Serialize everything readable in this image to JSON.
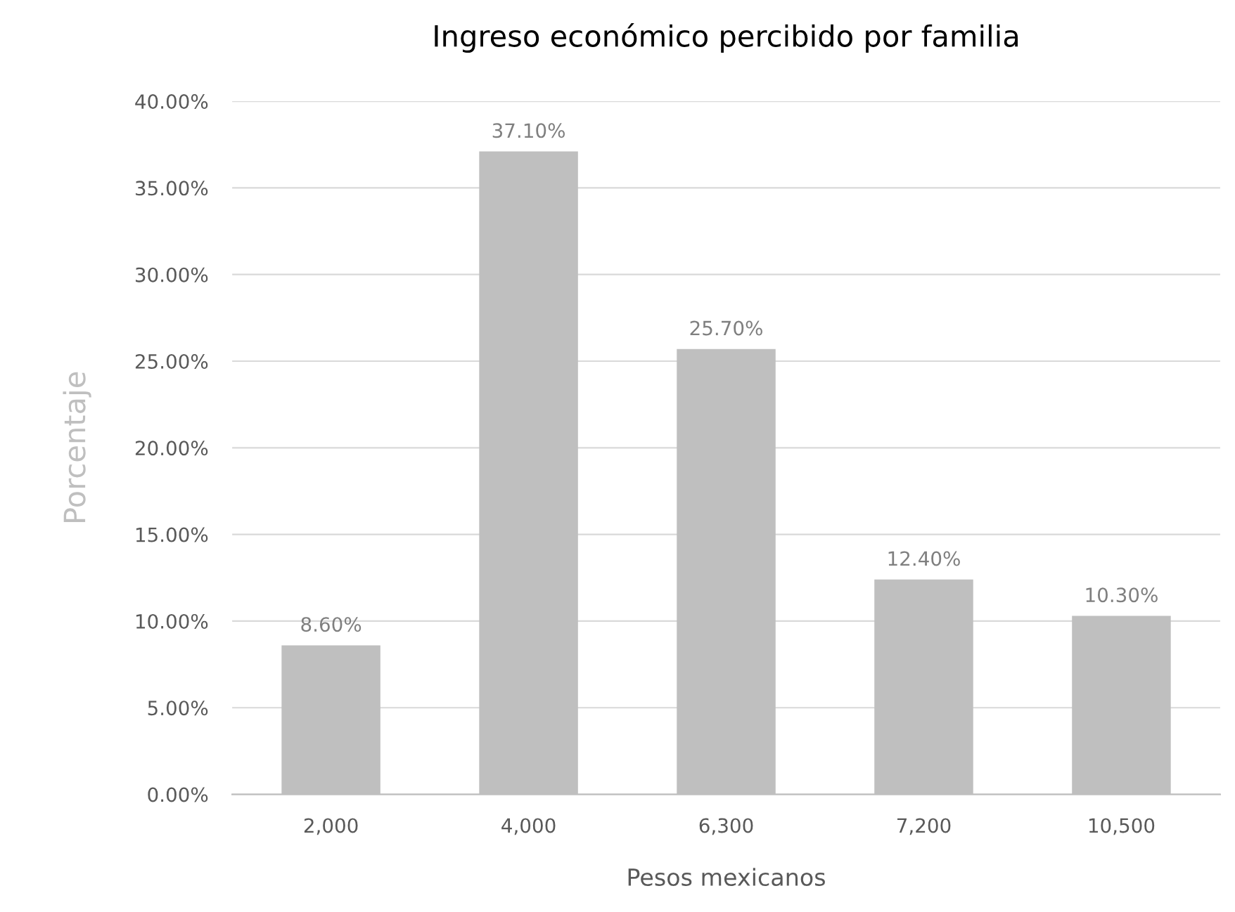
{
  "chart_data": {
    "type": "bar",
    "title": "Ingreso económico percibido por familia",
    "xlabel": "Pesos mexicanos",
    "ylabel": "Porcentaje",
    "categories": [
      "2,000",
      "4,000",
      "6,300",
      "7,200",
      "10,500"
    ],
    "values": [
      8.6,
      37.1,
      25.7,
      12.4,
      10.3
    ],
    "value_labels": [
      "8.60%",
      "37.10%",
      "25.70%",
      "12.40%",
      "10.30%"
    ],
    "color": "#bfbfbf",
    "ylim": [
      0,
      40
    ],
    "yticks": [
      {
        "value": 0,
        "label": "0.00%"
      },
      {
        "value": 5,
        "label": "5.00%"
      },
      {
        "value": 10,
        "label": "10.00%"
      },
      {
        "value": 15,
        "label": "15.00%"
      },
      {
        "value": 20,
        "label": "20.00%"
      },
      {
        "value": 25,
        "label": "25.00%"
      },
      {
        "value": 30,
        "label": "30.00%"
      },
      {
        "value": 35,
        "label": "35.00%"
      },
      {
        "value": 40,
        "label": "40.00%"
      }
    ],
    "grid": "y"
  }
}
